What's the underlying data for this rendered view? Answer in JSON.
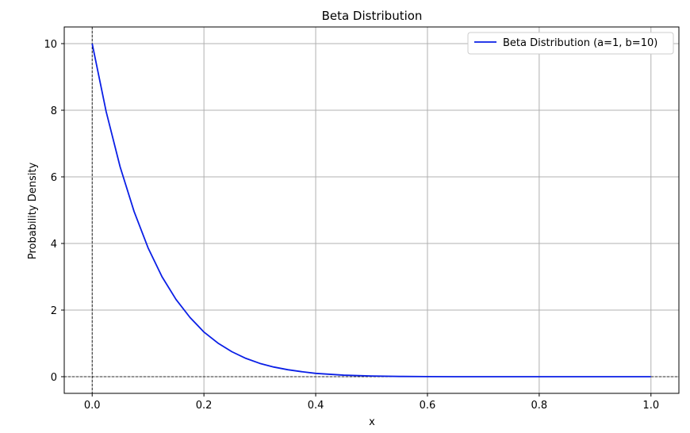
{
  "chart_data": {
    "type": "line",
    "title": "Beta Distribution",
    "xlabel": "x",
    "ylabel": "Probability Density",
    "xlim": [
      -0.05,
      1.05
    ],
    "ylim": [
      -0.5,
      10.5
    ],
    "xticks": [
      0.0,
      0.2,
      0.4,
      0.6,
      0.8,
      1.0
    ],
    "xtick_labels": [
      "0.0",
      "0.2",
      "0.4",
      "0.6",
      "0.8",
      "1.0"
    ],
    "yticks": [
      0,
      2,
      4,
      6,
      8,
      10
    ],
    "ytick_labels": [
      "0",
      "2",
      "4",
      "6",
      "8",
      "10"
    ],
    "grid": true,
    "reference_lines": {
      "x": 0,
      "y": 0,
      "style": "dashed",
      "color": "#000000"
    },
    "legend": {
      "placement": "top-right"
    },
    "series": [
      {
        "name": "Beta Distribution (a=1, b=10)",
        "color": "#0a1fe6",
        "x": [
          0.0,
          0.025,
          0.05,
          0.075,
          0.1,
          0.125,
          0.15,
          0.175,
          0.2,
          0.225,
          0.25,
          0.275,
          0.3,
          0.325,
          0.35,
          0.375,
          0.4,
          0.45,
          0.5,
          0.55,
          0.6,
          0.65,
          0.7,
          0.75,
          0.8,
          0.85,
          0.9,
          0.95,
          1.0
        ],
        "y": [
          10.0,
          7.96,
          6.3,
          4.96,
          3.87,
          3.0,
          2.32,
          1.78,
          1.34,
          1.01,
          0.75,
          0.55,
          0.4,
          0.29,
          0.21,
          0.15,
          0.1,
          0.046,
          0.02,
          0.0076,
          0.0026,
          0.0008,
          0.0002,
          0.0,
          0.0,
          0.0,
          0.0,
          0.0,
          0.0
        ]
      }
    ]
  }
}
